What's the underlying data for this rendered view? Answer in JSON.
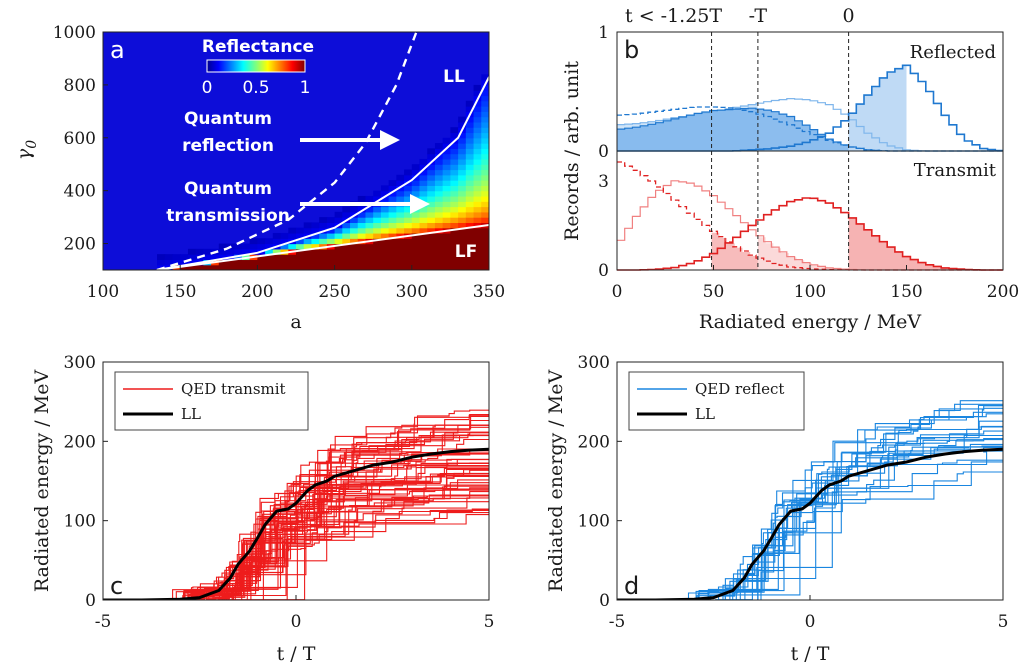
{
  "chart_data": [
    {
      "id": "a",
      "type": "heatmap",
      "panel_letter": "a",
      "xlabel": "a",
      "ylabel": "γ",
      "ylabel_sub": "0",
      "xlim": [
        100,
        350
      ],
      "ylim": [
        100,
        1000
      ],
      "xticks": [
        100,
        150,
        200,
        250,
        300,
        350
      ],
      "yticks": [
        200,
        400,
        600,
        800,
        1000
      ],
      "colorbar": {
        "title": "Reflectance",
        "ticks": [
          "0",
          "0.5",
          "1"
        ]
      },
      "annotations": {
        "quantum_reflection": [
          "Quantum",
          "reflection"
        ],
        "quantum_transmission": [
          "Quantum",
          "transmission"
        ],
        "ll": "LL",
        "lf": "LF"
      },
      "boundaries": {
        "lf_line": [
          [
            135,
            100
          ],
          [
            350,
            270
          ]
        ],
        "ll_curve": [
          [
            135,
            100
          ],
          [
            200,
            165
          ],
          [
            250,
            260
          ],
          [
            300,
            440
          ],
          [
            330,
            600
          ],
          [
            350,
            830
          ]
        ],
        "dashed_curve": [
          [
            135,
            100
          ],
          [
            180,
            180
          ],
          [
            220,
            290
          ],
          [
            250,
            430
          ],
          [
            270,
            580
          ],
          [
            290,
            800
          ],
          [
            303,
            1000
          ]
        ]
      }
    },
    {
      "id": "b",
      "type": "area",
      "panel_letter": "b",
      "xlabel": "Radiated energy / MeV",
      "ylabel": "Records / arb. unit",
      "xlim": [
        0,
        200
      ],
      "xticks": [
        0,
        50,
        100,
        150,
        200
      ],
      "top_ylim": [
        0,
        1
      ],
      "top_yticks": [
        "0",
        "1"
      ],
      "bottom_ylim": [
        0,
        4
      ],
      "bottom_yticks": [
        "0",
        "3"
      ],
      "top_label": "Reflected",
      "bottom_label": "Transmit",
      "vlines": [
        {
          "x": 49,
          "label": "t < -1.25T"
        },
        {
          "x": 73,
          "label": "-T"
        },
        {
          "x": 120,
          "label": "0"
        }
      ],
      "reflected_x": [
        0,
        10,
        20,
        30,
        40,
        50,
        60,
        70,
        80,
        90,
        100,
        110,
        120,
        130,
        140,
        150,
        160,
        170,
        180,
        190,
        200
      ],
      "reflected_solid_shaded": [
        0.18,
        0.2,
        0.23,
        0.27,
        0.31,
        0.34,
        0.35,
        0.36,
        0.34,
        0.29,
        0.2,
        0.1,
        0.04,
        0.01,
        0,
        0,
        0,
        0,
        0,
        0,
        0
      ],
      "reflected_dashed": [
        0.3,
        0.31,
        0.33,
        0.35,
        0.37,
        0.37,
        0.36,
        0.33,
        0.28,
        0.22,
        0.15,
        0.09,
        0.04,
        0.01,
        0,
        0,
        0,
        0,
        0,
        0,
        0
      ],
      "reflected_light": [
        0.22,
        0.23,
        0.25,
        0.28,
        0.3,
        0.33,
        0.36,
        0.39,
        0.42,
        0.44,
        0.43,
        0.39,
        0.29,
        0.15,
        0.05,
        0.01,
        0,
        0,
        0,
        0,
        0
      ],
      "reflected_final": [
        0,
        0,
        0,
        0,
        0,
        0,
        0,
        0.01,
        0.02,
        0.04,
        0.08,
        0.15,
        0.28,
        0.47,
        0.65,
        0.72,
        0.55,
        0.3,
        0.1,
        0.02,
        0
      ],
      "transmit_x": [
        0,
        10,
        20,
        30,
        40,
        50,
        60,
        70,
        80,
        90,
        100,
        110,
        120,
        130,
        140,
        150,
        160,
        170,
        180,
        190,
        200
      ],
      "transmit_dashed": [
        3.7,
        3.35,
        2.9,
        2.35,
        1.8,
        1.3,
        0.85,
        0.5,
        0.25,
        0.1,
        0.04,
        0.01,
        0,
        0,
        0,
        0,
        0,
        0,
        0,
        0,
        0
      ],
      "transmit_light": [
        0.8,
        1.8,
        2.6,
        3.0,
        2.9,
        2.5,
        1.95,
        1.35,
        0.85,
        0.45,
        0.2,
        0.07,
        0.02,
        0,
        0,
        0,
        0,
        0,
        0,
        0,
        0
      ],
      "transmit_final": [
        0,
        0,
        0.02,
        0.08,
        0.25,
        0.55,
        1.0,
        1.5,
        1.95,
        2.3,
        2.45,
        2.25,
        1.85,
        1.35,
        0.85,
        0.45,
        0.2,
        0.07,
        0.02,
        0,
        0
      ],
      "colors": {
        "reflected": "#1f78d0",
        "reflected_fill": "#7fb6ec",
        "reflected_light_fill": "#cfe4f8",
        "transmit": "#e02020",
        "transmit_fill": "#f4a0a0"
      }
    },
    {
      "id": "c",
      "type": "line",
      "panel_letter": "c",
      "xlabel": "t / T",
      "ylabel": "Radiated energy / MeV",
      "xlim": [
        -5,
        5
      ],
      "ylim": [
        0,
        300
      ],
      "xticks": [
        -5,
        0,
        5
      ],
      "yticks": [
        0,
        100,
        200,
        300
      ],
      "legend": [
        "QED transmit",
        "LL"
      ],
      "series_color": "#ee1c1c",
      "n_traces": 55,
      "final_range": [
        100,
        240
      ],
      "ll_curve": {
        "t": [
          -5,
          -4,
          -3,
          -2.5,
          -2,
          -1.7,
          -1.5,
          -1.2,
          -1,
          -0.8,
          -0.5,
          -0.2,
          0,
          0.3,
          0.5,
          0.8,
          1,
          1.5,
          2,
          2.5,
          3,
          3.5,
          4,
          4.5,
          5
        ],
        "e": [
          0,
          0,
          1,
          3,
          12,
          28,
          45,
          62,
          78,
          95,
          112,
          115,
          122,
          138,
          145,
          150,
          156,
          163,
          170,
          174,
          180,
          184,
          187,
          189,
          190
        ]
      }
    },
    {
      "id": "d",
      "type": "line",
      "panel_letter": "d",
      "xlabel": "t / T",
      "ylabel": "Radiated energy / MeV",
      "xlim": [
        -5,
        5
      ],
      "ylim": [
        0,
        300
      ],
      "xticks": [
        -5,
        0,
        5
      ],
      "yticks": [
        0,
        100,
        200,
        300
      ],
      "legend": [
        "QED reflect",
        "LL"
      ],
      "series_color": "#1a86e0",
      "n_traces": 22,
      "final_range": [
        150,
        248
      ],
      "ll_curve": {
        "t": [
          -5,
          -4,
          -3,
          -2.5,
          -2,
          -1.7,
          -1.5,
          -1.2,
          -1,
          -0.8,
          -0.5,
          -0.2,
          0,
          0.3,
          0.5,
          0.8,
          1,
          1.5,
          2,
          2.5,
          3,
          3.5,
          4,
          4.5,
          5
        ],
        "e": [
          0,
          0,
          1,
          3,
          12,
          28,
          45,
          62,
          78,
          95,
          112,
          115,
          122,
          138,
          145,
          150,
          156,
          163,
          170,
          174,
          180,
          184,
          187,
          189,
          190
        ]
      }
    }
  ]
}
